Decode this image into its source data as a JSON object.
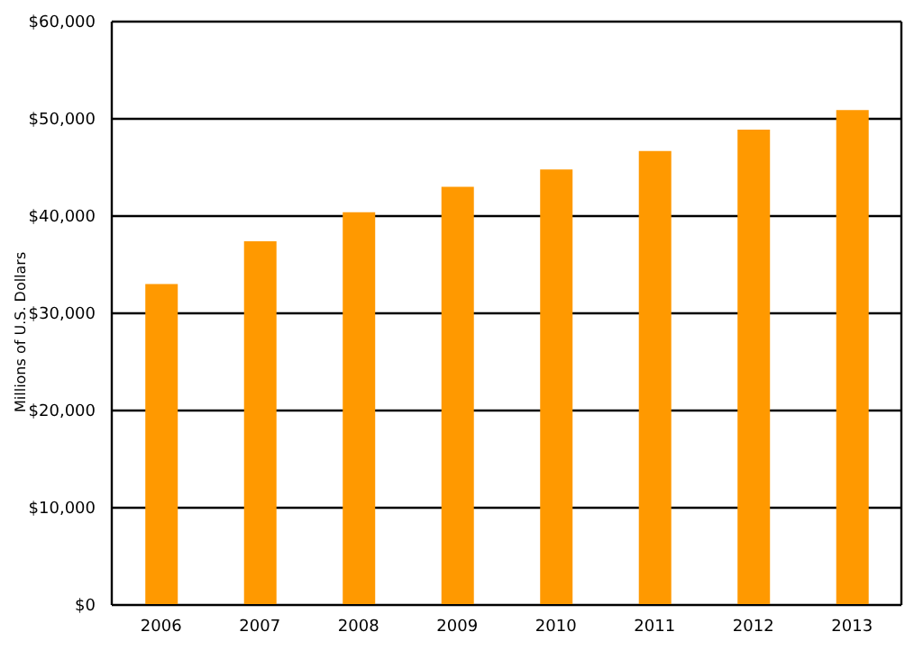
{
  "chart_data": {
    "type": "bar",
    "ylabel": "Millions of U.S. Dollars",
    "categories": [
      "2006",
      "2007",
      "2008",
      "2009",
      "2010",
      "2011",
      "2012",
      "2013"
    ],
    "values": [
      33000,
      37400,
      40400,
      43000,
      44800,
      46700,
      48900,
      50900
    ],
    "color": "#ff9900",
    "ylim": [
      0,
      60000
    ],
    "yticks": [
      {
        "value": 0,
        "label": "$0"
      },
      {
        "value": 10000,
        "label": "$10,000"
      },
      {
        "value": 20000,
        "label": "$20,000"
      },
      {
        "value": 30000,
        "label": "$30,000"
      },
      {
        "value": 40000,
        "label": "$40,000"
      },
      {
        "value": 50000,
        "label": "$50,000"
      },
      {
        "value": 60000,
        "label": "$60,000"
      }
    ],
    "grid": "y",
    "legend": false
  }
}
